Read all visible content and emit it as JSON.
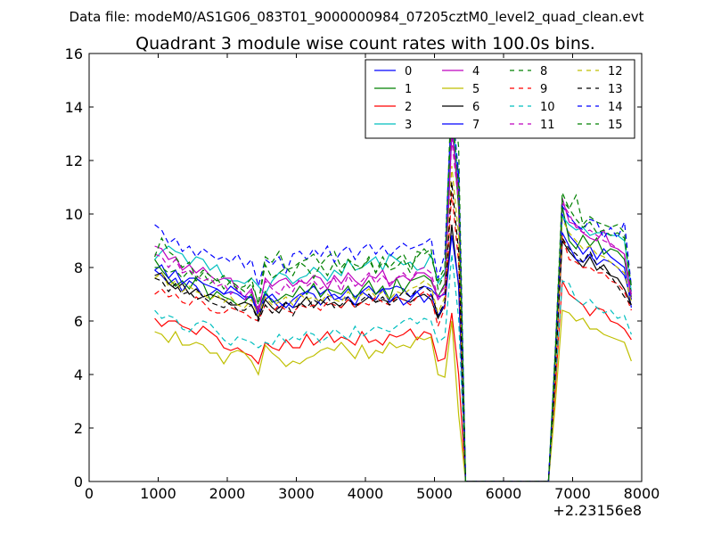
{
  "figure": {
    "suptitle": "Data file: modeM0/AS1G06_083T01_9000000984_07205cztM0_level2_quad_clean.evt"
  },
  "chart_data": {
    "type": "line",
    "title": "Quadrant 3 module wise count rates with 100.0s bins.",
    "xlabel": "",
    "ylabel": "",
    "x_offset_label": "+2.23156e8",
    "xlim": [
      0,
      8000
    ],
    "ylim": [
      0,
      16
    ],
    "xticks": [
      0,
      1000,
      2000,
      3000,
      4000,
      5000,
      6000,
      7000,
      8000
    ],
    "yticks": [
      0,
      2,
      4,
      6,
      8,
      10,
      12,
      14,
      16
    ],
    "grid": false,
    "legend": {
      "placement": "top-right",
      "columns": 4
    },
    "x": [
      950,
      1050,
      1150,
      1250,
      1350,
      1450,
      1550,
      1650,
      1750,
      1850,
      1950,
      2050,
      2150,
      2250,
      2350,
      2450,
      2550,
      2650,
      2750,
      2850,
      2950,
      3050,
      3150,
      3250,
      3350,
      3450,
      3550,
      3650,
      3750,
      3850,
      3950,
      4050,
      4150,
      4250,
      4350,
      4450,
      4550,
      4650,
      4750,
      4850,
      4950,
      5050,
      5150,
      5250,
      5350,
      5450,
      5550,
      5650,
      5750,
      5850,
      5950,
      6050,
      6150,
      6250,
      6350,
      6450,
      6550,
      6650,
      6750,
      6850,
      6950,
      7050,
      7150,
      7250,
      7350,
      7450,
      7550,
      7650,
      7750,
      7850
    ],
    "series": [
      {
        "name": "0",
        "color": "#0000ff",
        "dash": "solid",
        "values": [
          7.9,
          7.7,
          7.4,
          7.6,
          7.1,
          7.5,
          7.3,
          6.9,
          7.0,
          7.2,
          7.0,
          7.1,
          7.0,
          6.8,
          6.9,
          6.3,
          6.8,
          7.0,
          6.7,
          6.5,
          6.8,
          7.0,
          7.1,
          7.3,
          7.0,
          7.2,
          6.8,
          6.9,
          7.2,
          6.9,
          7.1,
          7.3,
          7.0,
          7.2,
          7.2,
          7.3,
          7.2,
          6.9,
          7.1,
          7.3,
          7.2,
          6.9,
          7.0,
          13.0,
          11.5,
          0,
          0,
          0,
          0,
          0,
          0,
          0,
          0,
          0,
          0,
          0,
          0,
          0,
          4.5,
          10.0,
          9.2,
          8.9,
          8.5,
          8.8,
          8.3,
          8.7,
          8.4,
          8.2,
          8.0,
          6.5
        ]
      },
      {
        "name": "1",
        "color": "#008000",
        "dash": "solid",
        "values": [
          8.3,
          7.9,
          7.6,
          7.3,
          7.5,
          7.2,
          7.6,
          7.4,
          6.8,
          7.1,
          6.9,
          6.8,
          6.6,
          6.7,
          7.0,
          6.4,
          7.1,
          6.7,
          6.8,
          7.0,
          6.9,
          7.3,
          7.0,
          7.4,
          6.9,
          7.2,
          7.1,
          7.0,
          7.3,
          6.8,
          7.2,
          7.5,
          7.0,
          7.3,
          6.8,
          7.6,
          7.1,
          7.5,
          7.6,
          7.7,
          7.5,
          6.9,
          7.4,
          13.6,
          10.2,
          0,
          0,
          0,
          0,
          0,
          0,
          0,
          0,
          0,
          0,
          0,
          0,
          0,
          4.4,
          10.3,
          9.0,
          8.7,
          9.2,
          8.8,
          9.1,
          8.5,
          8.7,
          8.6,
          8.3,
          6.9
        ]
      },
      {
        "name": "2",
        "color": "#ff0000",
        "dash": "solid",
        "values": [
          6.1,
          5.8,
          6.0,
          6.0,
          5.8,
          5.7,
          5.5,
          5.8,
          5.6,
          5.4,
          5.0,
          4.9,
          5.0,
          4.8,
          4.7,
          4.4,
          5.2,
          5.0,
          4.9,
          5.3,
          5.0,
          5.0,
          5.5,
          5.1,
          5.3,
          5.6,
          5.2,
          5.4,
          5.3,
          5.1,
          5.6,
          5.2,
          5.3,
          5.1,
          5.5,
          5.4,
          5.5,
          5.7,
          5.3,
          5.6,
          5.5,
          4.5,
          4.6,
          6.3,
          4.0,
          0,
          0,
          0,
          0,
          0,
          0,
          0,
          0,
          0,
          0,
          0,
          0,
          0,
          3.5,
          7.5,
          7.0,
          6.8,
          6.6,
          6.2,
          6.5,
          6.4,
          6.0,
          5.9,
          5.7,
          5.3
        ]
      },
      {
        "name": "3",
        "color": "#00bfbf",
        "dash": "solid",
        "values": [
          8.3,
          8.6,
          8.8,
          8.6,
          8.5,
          8.1,
          8.4,
          8.3,
          7.9,
          8.1,
          7.6,
          7.5,
          7.5,
          7.4,
          7.6,
          7.3,
          7.0,
          7.5,
          7.8,
          7.7,
          7.4,
          7.6,
          7.7,
          8.0,
          7.8,
          7.5,
          7.9,
          7.7,
          8.3,
          7.9,
          8.0,
          8.2,
          8.4,
          7.9,
          8.5,
          8.3,
          8.1,
          8.2,
          7.9,
          8.0,
          8.5,
          7.4,
          7.8,
          13.9,
          11.0,
          0,
          0,
          0,
          0,
          0,
          0,
          0,
          0,
          0,
          0,
          0,
          0,
          0,
          4.6,
          9.9,
          9.6,
          9.4,
          9.5,
          9.2,
          9.3,
          9.3,
          9.2,
          9.2,
          9.0,
          7.1
        ]
      },
      {
        "name": "4",
        "color": "#bf00bf",
        "dash": "solid",
        "values": [
          8.8,
          8.7,
          8.3,
          8.4,
          7.9,
          8.1,
          7.8,
          8.0,
          7.7,
          7.5,
          7.6,
          7.6,
          7.1,
          6.9,
          7.2,
          6.3,
          7.6,
          7.3,
          7.5,
          7.6,
          7.3,
          7.5,
          7.4,
          7.7,
          7.6,
          7.2,
          7.7,
          7.4,
          7.8,
          7.5,
          7.3,
          7.7,
          7.6,
          7.9,
          7.3,
          7.6,
          7.7,
          7.5,
          7.8,
          7.8,
          7.6,
          6.8,
          7.1,
          13.2,
          10.8,
          0,
          0,
          0,
          0,
          0,
          0,
          0,
          0,
          0,
          0,
          0,
          0,
          0,
          4.3,
          10.6,
          9.7,
          9.6,
          9.3,
          9.1,
          9.0,
          9.4,
          8.8,
          8.7,
          8.5,
          6.8
        ]
      },
      {
        "name": "5",
        "color": "#bfbf00",
        "dash": "solid",
        "values": [
          5.6,
          5.5,
          5.2,
          5.6,
          5.1,
          5.1,
          5.2,
          5.1,
          4.8,
          4.8,
          4.4,
          4.8,
          4.9,
          4.8,
          4.5,
          4.0,
          5.1,
          4.8,
          4.6,
          4.3,
          4.5,
          4.4,
          4.6,
          4.7,
          4.9,
          5.0,
          4.9,
          5.2,
          4.9,
          4.6,
          5.1,
          4.6,
          4.9,
          4.8,
          5.2,
          5.0,
          5.1,
          5.0,
          5.4,
          5.3,
          5.4,
          4.0,
          3.9,
          6.0,
          2.5,
          0,
          0,
          0,
          0,
          0,
          0,
          0,
          0,
          0,
          0,
          0,
          0,
          0,
          2.9,
          6.4,
          6.3,
          6.0,
          6.1,
          5.7,
          5.7,
          5.5,
          5.4,
          5.3,
          5.2,
          4.5
        ]
      },
      {
        "name": "6",
        "color": "#000000",
        "dash": "solid",
        "values": [
          7.7,
          7.8,
          7.4,
          7.2,
          7.4,
          7.0,
          7.2,
          6.9,
          7.0,
          6.9,
          6.8,
          6.6,
          6.6,
          6.7,
          6.6,
          6.1,
          6.8,
          6.5,
          6.3,
          6.7,
          6.5,
          6.6,
          6.9,
          6.5,
          6.8,
          6.6,
          6.7,
          6.5,
          6.8,
          6.6,
          6.7,
          6.9,
          6.7,
          6.8,
          6.7,
          6.9,
          6.8,
          6.7,
          6.9,
          7.0,
          6.8,
          6.1,
          6.6,
          9.6,
          7.3,
          0,
          0,
          0,
          0,
          0,
          0,
          0,
          0,
          0,
          0,
          0,
          0,
          0,
          4.2,
          9.0,
          8.6,
          8.3,
          8.0,
          8.4,
          7.9,
          8.1,
          7.7,
          7.6,
          7.2,
          6.6
        ]
      },
      {
        "name": "7",
        "color": "#0000ff",
        "dash": "solid",
        "values": [
          7.9,
          8.1,
          7.6,
          7.9,
          7.4,
          7.6,
          7.6,
          7.4,
          7.3,
          7.2,
          7.0,
          7.3,
          7.1,
          6.9,
          6.9,
          6.2,
          7.0,
          6.8,
          6.5,
          6.7,
          6.5,
          6.9,
          7.1,
          7.0,
          6.6,
          6.9,
          7.0,
          6.8,
          6.9,
          6.6,
          7.1,
          6.9,
          6.8,
          7.2,
          6.7,
          7.0,
          6.6,
          6.8,
          7.1,
          6.7,
          7.0,
          6.2,
          6.6,
          9.2,
          7.4,
          0,
          0,
          0,
          0,
          0,
          0,
          0,
          0,
          0,
          0,
          0,
          0,
          0,
          4.4,
          9.3,
          8.8,
          8.3,
          8.2,
          8.5,
          8.1,
          8.3,
          8.2,
          8.0,
          7.7,
          6.8
        ]
      },
      {
        "name": "8",
        "color": "#008000",
        "dash": "dashed",
        "values": [
          8.0,
          8.0,
          7.8,
          7.9,
          7.6,
          7.9,
          7.5,
          7.8,
          7.4,
          7.6,
          7.2,
          7.5,
          7.3,
          7.1,
          7.4,
          6.7,
          8.1,
          7.6,
          7.8,
          8.0,
          7.7,
          8.2,
          8.0,
          7.6,
          8.1,
          7.7,
          8.2,
          7.8,
          8.3,
          7.9,
          8.0,
          8.3,
          7.8,
          8.4,
          7.9,
          8.0,
          8.3,
          7.8,
          8.6,
          8.5,
          8.7,
          7.2,
          7.8,
          15.0,
          12.5,
          0,
          0,
          0,
          0,
          0,
          0,
          0,
          0,
          0,
          0,
          0,
          0,
          0,
          5.0,
          10.8,
          10.2,
          10.7,
          9.6,
          9.9,
          9.7,
          9.6,
          9.5,
          9.6,
          9.3,
          6.9
        ]
      },
      {
        "name": "9",
        "color": "#ff0000",
        "dash": "dashed",
        "values": [
          7.0,
          7.2,
          6.9,
          7.0,
          6.7,
          6.6,
          6.9,
          6.7,
          6.4,
          6.3,
          6.3,
          6.5,
          6.4,
          6.3,
          6.1,
          6.0,
          6.6,
          6.3,
          6.6,
          6.4,
          6.3,
          6.6,
          6.5,
          6.6,
          6.4,
          6.7,
          6.6,
          6.5,
          6.8,
          6.5,
          6.7,
          6.6,
          6.9,
          6.7,
          6.6,
          6.9,
          6.8,
          6.6,
          6.9,
          7.1,
          6.9,
          5.8,
          6.5,
          10.8,
          8.2,
          0,
          0,
          0,
          0,
          0,
          0,
          0,
          0,
          0,
          0,
          0,
          0,
          0,
          4.0,
          9.2,
          8.3,
          8.2,
          8.0,
          8.0,
          7.8,
          7.8,
          7.5,
          7.4,
          7.1,
          6.4
        ]
      },
      {
        "name": "10",
        "color": "#00bfbf",
        "dash": "dashed",
        "values": [
          6.4,
          6.1,
          6.2,
          6.1,
          5.7,
          5.6,
          5.9,
          6.0,
          5.9,
          5.6,
          5.3,
          5.1,
          5.4,
          5.3,
          5.2,
          5.0,
          5.2,
          5.1,
          5.5,
          5.2,
          5.4,
          5.3,
          5.6,
          5.5,
          5.2,
          5.4,
          5.7,
          5.5,
          5.3,
          5.8,
          5.4,
          5.6,
          5.8,
          5.7,
          5.6,
          5.8,
          6.0,
          6.1,
          5.9,
          6.1,
          6.0,
          5.2,
          5.4,
          8.5,
          6.1,
          0,
          0,
          0,
          0,
          0,
          0,
          0,
          0,
          0,
          0,
          0,
          0,
          0,
          3.8,
          7.5,
          7.4,
          6.8,
          6.6,
          6.8,
          6.5,
          6.3,
          6.4,
          6.1,
          6.2,
          5.5
        ]
      },
      {
        "name": "11",
        "color": "#bf00bf",
        "dash": "dashed",
        "values": [
          8.5,
          8.4,
          8.0,
          8.3,
          7.8,
          7.9,
          7.7,
          7.5,
          7.6,
          7.3,
          7.4,
          7.0,
          7.3,
          6.8,
          7.1,
          6.5,
          7.5,
          7.2,
          7.0,
          7.4,
          7.1,
          7.6,
          7.3,
          7.5,
          7.2,
          7.4,
          7.6,
          7.1,
          7.7,
          7.3,
          7.5,
          7.8,
          7.4,
          7.7,
          7.4,
          7.6,
          7.8,
          7.5,
          7.9,
          8.0,
          7.8,
          6.9,
          7.3,
          12.8,
          10.4,
          0,
          0,
          0,
          0,
          0,
          0,
          0,
          0,
          0,
          0,
          0,
          0,
          0,
          4.5,
          10.4,
          10.0,
          9.5,
          9.3,
          9.4,
          9.2,
          9.0,
          8.9,
          8.7,
          8.5,
          7.0
        ]
      },
      {
        "name": "12",
        "color": "#bfbf00",
        "dash": "dashed",
        "values": [
          7.6,
          7.8,
          7.3,
          7.5,
          7.1,
          7.3,
          7.1,
          7.0,
          6.8,
          7.0,
          6.7,
          6.9,
          6.6,
          6.5,
          6.8,
          6.2,
          6.9,
          6.6,
          6.7,
          6.9,
          6.6,
          7.0,
          6.8,
          6.9,
          6.7,
          7.0,
          6.8,
          6.7,
          7.1,
          6.8,
          7.0,
          7.2,
          6.9,
          7.1,
          6.8,
          7.1,
          7.0,
          7.2,
          7.3,
          7.5,
          7.3,
          6.3,
          6.9,
          11.8,
          9.2,
          0,
          0,
          0,
          0,
          0,
          0,
          0,
          0,
          0,
          0,
          0,
          0,
          0,
          4.2,
          9.8,
          9.3,
          9.0,
          8.7,
          8.8,
          8.5,
          8.4,
          8.2,
          8.0,
          7.8,
          6.7
        ]
      },
      {
        "name": "13",
        "color": "#000000",
        "dash": "dashed",
        "values": [
          7.6,
          7.5,
          7.1,
          7.4,
          7.0,
          7.1,
          6.8,
          6.9,
          6.7,
          6.6,
          6.5,
          6.7,
          6.4,
          6.4,
          6.6,
          6.0,
          6.6,
          6.3,
          6.5,
          6.7,
          6.2,
          6.7,
          6.5,
          6.8,
          6.6,
          6.9,
          6.5,
          6.6,
          6.9,
          6.5,
          6.8,
          7.0,
          6.7,
          6.9,
          6.6,
          6.8,
          7.1,
          6.9,
          7.2,
          7.3,
          7.1,
          6.2,
          6.7,
          11.2,
          8.6,
          0,
          0,
          0,
          0,
          0,
          0,
          0,
          0,
          0,
          0,
          0,
          0,
          0,
          4.1,
          9.1,
          8.7,
          8.5,
          8.2,
          8.6,
          8.1,
          7.9,
          7.7,
          7.3,
          6.9,
          6.6
        ]
      },
      {
        "name": "14",
        "color": "#0000ff",
        "dash": "dashed",
        "values": [
          9.6,
          9.4,
          8.9,
          9.1,
          8.6,
          8.8,
          8.4,
          8.7,
          8.5,
          8.3,
          8.4,
          8.2,
          8.5,
          8.0,
          8.3,
          7.3,
          8.3,
          8.1,
          8.4,
          7.8,
          8.5,
          8.6,
          8.3,
          8.7,
          8.4,
          8.8,
          8.2,
          8.6,
          8.8,
          8.3,
          8.7,
          8.9,
          8.5,
          8.8,
          8.4,
          8.7,
          8.9,
          8.7,
          8.8,
          8.9,
          9.1,
          7.6,
          8.5,
          14.2,
          11.5,
          0,
          0,
          0,
          0,
          0,
          0,
          0,
          0,
          0,
          0,
          0,
          0,
          0,
          4.8,
          10.3,
          9.9,
          9.6,
          9.4,
          9.8,
          9.7,
          9.1,
          9.5,
          9.1,
          9.7,
          7.3
        ]
      },
      {
        "name": "15",
        "color": "#008000",
        "dash": "dashed",
        "values": [
          8.4,
          9.1,
          8.6,
          8.4,
          8.0,
          8.2,
          7.6,
          7.9,
          7.7,
          7.5,
          7.7,
          7.4,
          7.2,
          7.3,
          7.6,
          6.6,
          8.4,
          8.2,
          8.6,
          7.9,
          8.0,
          8.2,
          8.3,
          8.5,
          8.1,
          8.4,
          8.6,
          8.0,
          8.3,
          8.1,
          8.0,
          8.4,
          7.8,
          8.2,
          8.0,
          8.3,
          8.5,
          8.0,
          8.4,
          8.7,
          8.4,
          7.5,
          8.0,
          14.1,
          11.0,
          0,
          0,
          0,
          0,
          0,
          0,
          0,
          0,
          0,
          0,
          0,
          0,
          0,
          4.9,
          10.5,
          10.2,
          9.8,
          9.5,
          9.7,
          9.3,
          9.4,
          9.2,
          9.3,
          9.1,
          7.3
        ]
      }
    ]
  }
}
